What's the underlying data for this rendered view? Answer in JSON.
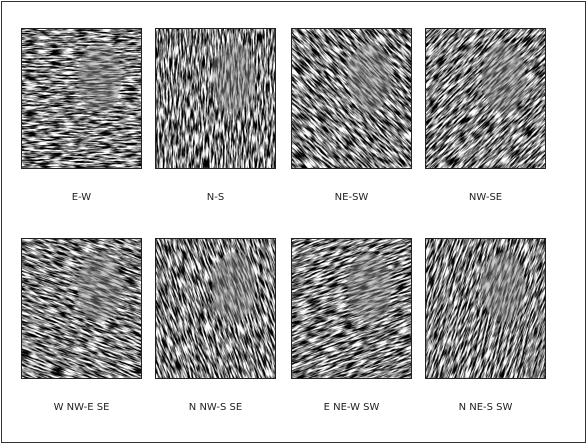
{
  "panels": [
    {
      "label": "E-W"
    },
    {
      "label": "N-S"
    },
    {
      "label": "NE-SW"
    },
    {
      "label": "NW-SE"
    },
    {
      "label": "W NW-E SE"
    },
    {
      "label": "N NW-S SE"
    },
    {
      "label": "E NE-W SW"
    },
    {
      "label": "N NE-S SW"
    }
  ]
}
